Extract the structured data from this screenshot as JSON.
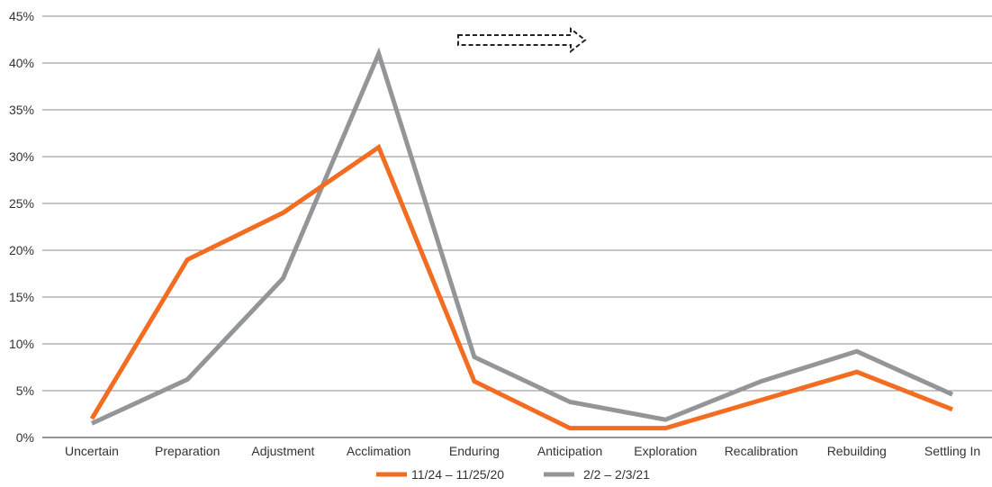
{
  "chart_data": {
    "type": "line",
    "categories": [
      "Uncertain",
      "Preparation",
      "Adjustment",
      "Acclimation",
      "Enduring",
      "Anticipation",
      "Exploration",
      "Recalibration",
      "Rebuilding",
      "Settling In"
    ],
    "series": [
      {
        "name": "11/24 – 11/25/20",
        "color": "#F26D21",
        "values": [
          2,
          19,
          24,
          31,
          6,
          1,
          1,
          4,
          7,
          3
        ]
      },
      {
        "name": "2/2 – 2/3/21",
        "color": "#939598",
        "values": [
          1.5,
          6.2,
          17,
          41,
          8.6,
          3.8,
          1.9,
          6,
          9.2,
          4.6
        ]
      }
    ],
    "yticks": [
      "0%",
      "5%",
      "10%",
      "15%",
      "20%",
      "25%",
      "30%",
      "35%",
      "40%",
      "45%"
    ],
    "ylim": [
      0,
      45
    ],
    "grid": true,
    "legend_position": "bottom",
    "annotation": {
      "type": "dashed-arrow-right"
    },
    "title": "",
    "xlabel": "",
    "ylabel": ""
  }
}
